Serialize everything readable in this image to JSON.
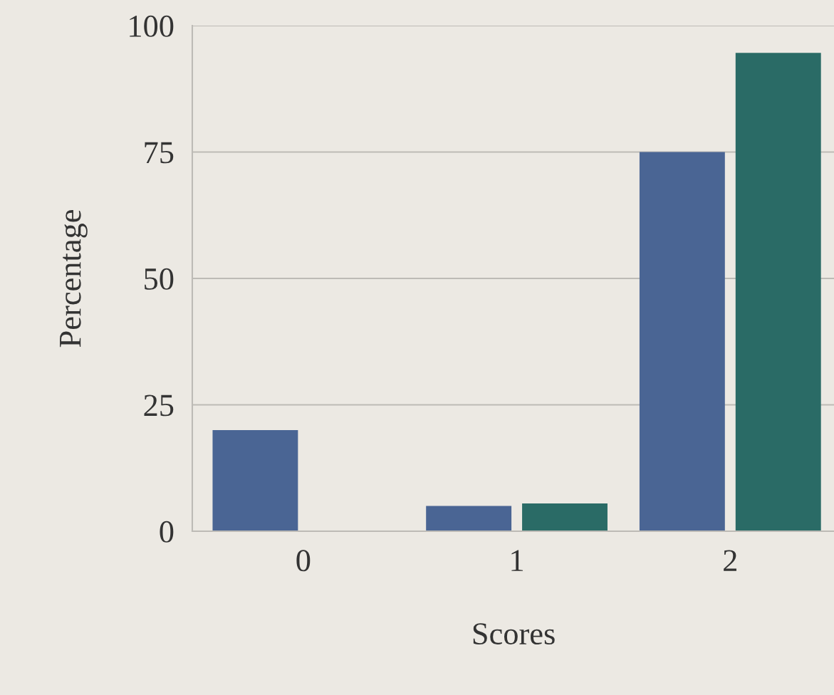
{
  "chart_data": {
    "type": "bar",
    "xlabel": "Scores",
    "ylabel": "Percentage",
    "categories": [
      "0",
      "1",
      "2"
    ],
    "series": [
      {
        "color": "#4a6594",
        "values": [
          20,
          5,
          75
        ]
      },
      {
        "color": "#2a6b66",
        "values": [
          null,
          5.5,
          94.6
        ]
      }
    ],
    "ylim": [
      0,
      100
    ],
    "yticks": [
      0,
      25,
      50,
      75,
      100
    ],
    "grid": "y"
  }
}
